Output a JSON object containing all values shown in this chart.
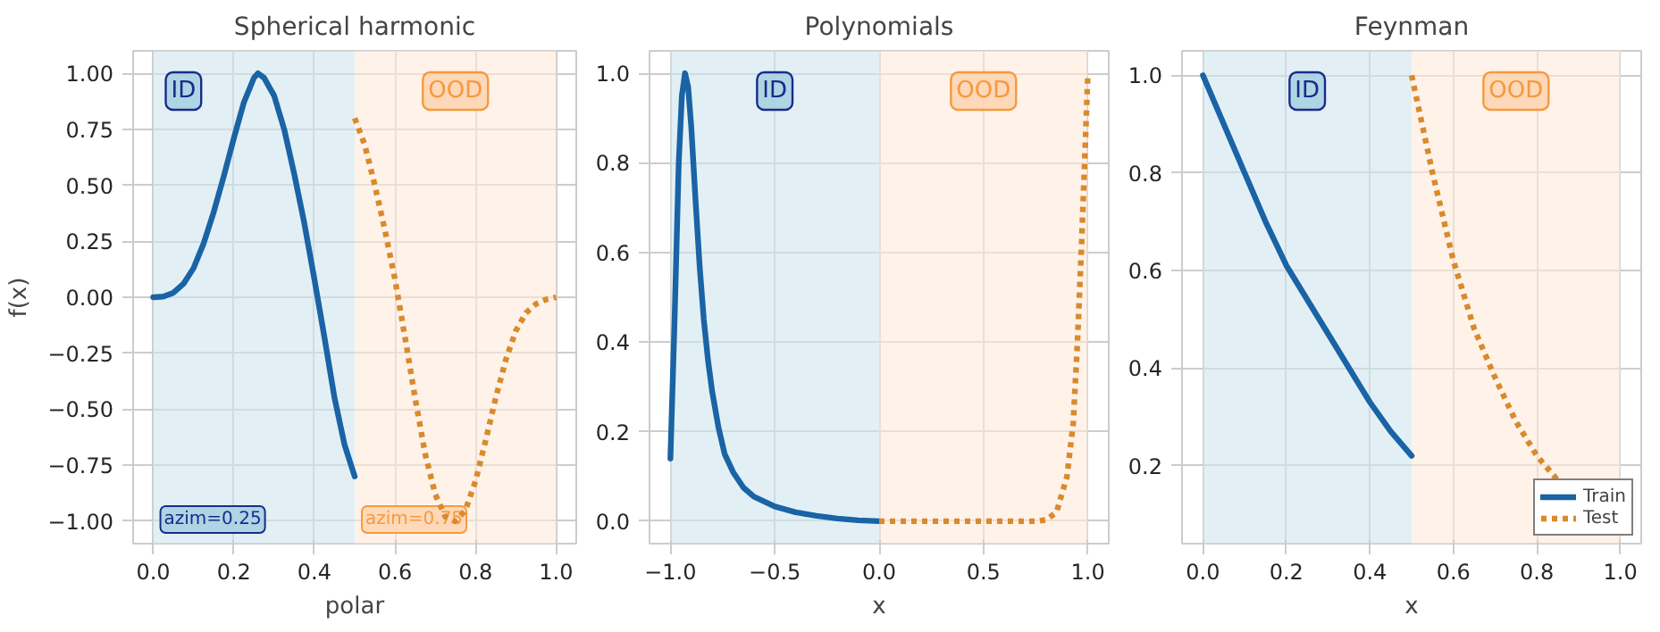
{
  "chart_data": [
    {
      "type": "line",
      "title": "Spherical harmonic",
      "xlabel": "polar",
      "ylabel": "f(x)",
      "xlim": [
        -0.05,
        1.05
      ],
      "ylim": [
        -1.1,
        1.1
      ],
      "xticks": [
        {
          "value": 0,
          "label": "0.0"
        },
        {
          "value": 0.2,
          "label": "0.2"
        },
        {
          "value": 0.4,
          "label": "0.4"
        },
        {
          "value": 0.6,
          "label": "0.6"
        },
        {
          "value": 0.8,
          "label": "0.8"
        },
        {
          "value": 1,
          "label": "1.0"
        }
      ],
      "yticks": [
        {
          "value": -1,
          "label": "−1.00"
        },
        {
          "value": -0.75,
          "label": "−0.75"
        },
        {
          "value": -0.5,
          "label": "−0.50"
        },
        {
          "value": -0.25,
          "label": "−0.25"
        },
        {
          "value": 0,
          "label": "0.00"
        },
        {
          "value": 0.25,
          "label": "0.25"
        },
        {
          "value": 0.5,
          "label": "0.50"
        },
        {
          "value": 0.75,
          "label": "0.75"
        },
        {
          "value": 1,
          "label": "1.00"
        }
      ],
      "grid": true,
      "bands": [
        {
          "axis": "x",
          "from": 0,
          "to": 0.5,
          "label": "ID",
          "color": "#cfe6ee"
        },
        {
          "axis": "x",
          "from": 0.5,
          "to": 1,
          "label": "OOD",
          "color": "#fdeadb"
        }
      ],
      "annotations": [
        "azim=0.25",
        "azim=0.75"
      ],
      "series": [
        {
          "color": "#1a63a5",
          "line_style": "solid",
          "x": [
            0,
            0.025,
            0.05,
            0.075,
            0.1,
            0.125,
            0.15,
            0.175,
            0.2,
            0.225,
            0.25,
            0.26,
            0.275,
            0.3,
            0.325,
            0.35,
            0.375,
            0.4,
            0.425,
            0.45,
            0.475,
            0.5
          ],
          "values": [
            0,
            0.003,
            0.02,
            0.06,
            0.13,
            0.24,
            0.38,
            0.54,
            0.71,
            0.87,
            0.98,
            1.0,
            0.98,
            0.9,
            0.75,
            0.55,
            0.33,
            0.08,
            -0.18,
            -0.45,
            -0.66,
            -0.8
          ]
        },
        {
          "color": "#d98a2b",
          "line_style": "dotted",
          "x": [
            0.5,
            0.525,
            0.55,
            0.575,
            0.6,
            0.625,
            0.65,
            0.675,
            0.7,
            0.725,
            0.75,
            0.775,
            0.8,
            0.825,
            0.85,
            0.875,
            0.9,
            0.925,
            0.95,
            0.975,
            1.0
          ],
          "values": [
            0.8,
            0.68,
            0.5,
            0.3,
            0.08,
            -0.18,
            -0.45,
            -0.7,
            -0.88,
            -0.98,
            -1.0,
            -0.95,
            -0.82,
            -0.64,
            -0.45,
            -0.28,
            -0.15,
            -0.07,
            -0.03,
            -0.01,
            0
          ]
        }
      ]
    },
    {
      "type": "line",
      "title": "Polynomials",
      "xlabel": "x",
      "xlim": [
        -1.1,
        1.1
      ],
      "ylim": [
        -0.05,
        1.05
      ],
      "xticks": [
        {
          "value": -1,
          "label": "−1.0"
        },
        {
          "value": -0.5,
          "label": "−0.5"
        },
        {
          "value": 0,
          "label": "0.0"
        },
        {
          "value": 0.5,
          "label": "0.5"
        },
        {
          "value": 1,
          "label": "1.0"
        }
      ],
      "yticks": [
        {
          "value": 0,
          "label": "0.0"
        },
        {
          "value": 0.2,
          "label": "0.2"
        },
        {
          "value": 0.4,
          "label": "0.4"
        },
        {
          "value": 0.6,
          "label": "0.6"
        },
        {
          "value": 0.8,
          "label": "0.8"
        },
        {
          "value": 1,
          "label": "1.0"
        }
      ],
      "grid": true,
      "bands": [
        {
          "axis": "x",
          "from": -1,
          "to": 0,
          "label": "ID",
          "color": "#cfe6ee"
        },
        {
          "axis": "x",
          "from": 0,
          "to": 1,
          "label": "OOD",
          "color": "#fdeadb"
        }
      ],
      "series": [
        {
          "color": "#1a63a5",
          "line_style": "solid",
          "x": [
            -1,
            -0.98,
            -0.96,
            -0.945,
            -0.93,
            -0.915,
            -0.9,
            -0.88,
            -0.86,
            -0.84,
            -0.82,
            -0.8,
            -0.77,
            -0.74,
            -0.7,
            -0.65,
            -0.6,
            -0.5,
            -0.4,
            -0.3,
            -0.2,
            -0.1,
            0
          ],
          "values": [
            0.14,
            0.45,
            0.8,
            0.95,
            1.0,
            0.97,
            0.88,
            0.72,
            0.57,
            0.45,
            0.36,
            0.29,
            0.21,
            0.15,
            0.11,
            0.075,
            0.055,
            0.033,
            0.02,
            0.012,
            0.006,
            0.002,
            0
          ]
        },
        {
          "color": "#d98a2b",
          "line_style": "dotted",
          "x": [
            0,
            0.5,
            0.75,
            0.8,
            0.85,
            0.9,
            0.93,
            0.95,
            0.97,
            0.99,
            1.0
          ],
          "values": [
            0,
            0,
            0,
            0.003,
            0.02,
            0.1,
            0.22,
            0.4,
            0.62,
            0.87,
            1.0
          ]
        }
      ]
    },
    {
      "type": "line",
      "title": "Feynman",
      "xlabel": "x",
      "xlim": [
        -0.05,
        1.05
      ],
      "ylim": [
        0.04,
        1.05
      ],
      "xticks": [
        {
          "value": 0,
          "label": "0.0"
        },
        {
          "value": 0.2,
          "label": "0.2"
        },
        {
          "value": 0.4,
          "label": "0.4"
        },
        {
          "value": 0.6,
          "label": "0.6"
        },
        {
          "value": 0.8,
          "label": "0.8"
        },
        {
          "value": 1,
          "label": "1.0"
        }
      ],
      "yticks": [
        {
          "value": 0.2,
          "label": "0.2"
        },
        {
          "value": 0.4,
          "label": "0.4"
        },
        {
          "value": 0.6,
          "label": "0.6"
        },
        {
          "value": 0.8,
          "label": "0.8"
        },
        {
          "value": 1,
          "label": "1.0"
        }
      ],
      "grid": true,
      "legend": "bottom right",
      "bands": [
        {
          "axis": "x",
          "from": 0,
          "to": 0.5,
          "label": "ID",
          "color": "#cfe6ee"
        },
        {
          "axis": "x",
          "from": 0.5,
          "to": 1,
          "label": "OOD",
          "color": "#fdeadb"
        }
      ],
      "series": [
        {
          "name": "Train",
          "color": "#1a63a5",
          "line_style": "solid",
          "x": [
            0,
            0.05,
            0.1,
            0.15,
            0.2,
            0.25,
            0.3,
            0.35,
            0.4,
            0.45,
            0.5
          ],
          "values": [
            1.0,
            0.9,
            0.8,
            0.7,
            0.61,
            0.54,
            0.47,
            0.4,
            0.33,
            0.27,
            0.22
          ]
        },
        {
          "name": "Test",
          "color": "#d98a2b",
          "line_style": "dotted",
          "x": [
            0.5,
            0.55,
            0.6,
            0.65,
            0.7,
            0.75,
            0.8,
            0.85
          ],
          "values": [
            1.0,
            0.8,
            0.62,
            0.48,
            0.38,
            0.29,
            0.22,
            0.17
          ]
        }
      ]
    }
  ]
}
